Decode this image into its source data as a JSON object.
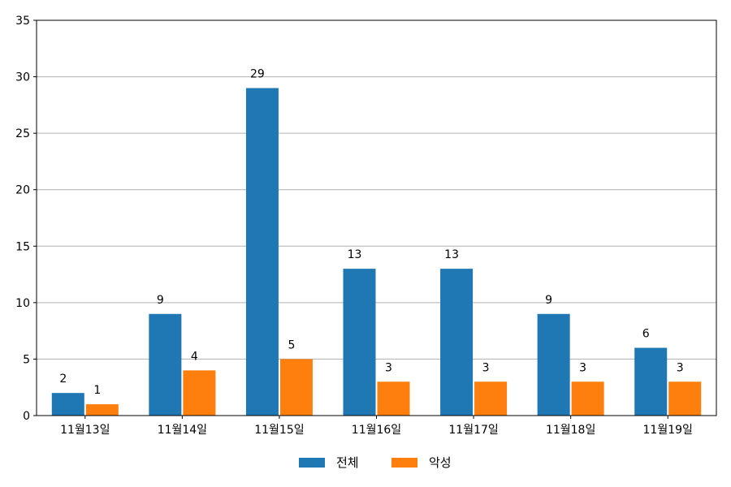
{
  "chart_data": {
    "type": "bar",
    "categories": [
      "11월13일",
      "11월14일",
      "11월15일",
      "11월16일",
      "11월17일",
      "11월18일",
      "11월19일"
    ],
    "series": [
      {
        "name": "전체",
        "color": "#1f77b4",
        "values": [
          2,
          9,
          29,
          13,
          13,
          9,
          6
        ]
      },
      {
        "name": "악성",
        "color": "#ff7f0e",
        "values": [
          1,
          4,
          5,
          3,
          3,
          3,
          3
        ]
      }
    ],
    "ylim": [
      0,
      35
    ],
    "yticks": [
      0,
      5,
      10,
      15,
      20,
      25,
      30,
      35
    ],
    "grid": "y",
    "legend": "bottom-center"
  }
}
